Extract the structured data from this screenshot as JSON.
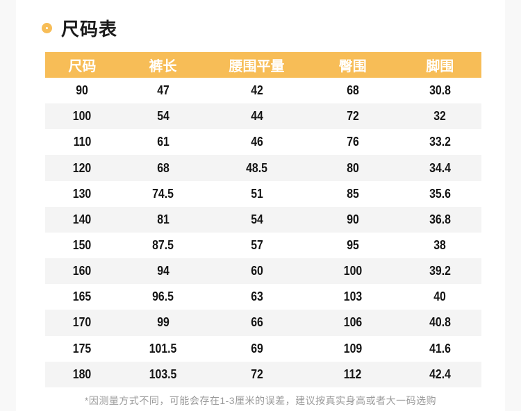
{
  "section": {
    "title": "尺码表",
    "footnote": "*因测量方式不同，可能会存在1-3厘米的误差，建议按真实身高或者大一码选购"
  },
  "table": {
    "headers": [
      "尺码",
      "裤长",
      "腰围平量",
      "臀围",
      "脚围"
    ],
    "rows": [
      [
        "90",
        "47",
        "42",
        "68",
        "30.8"
      ],
      [
        "100",
        "54",
        "44",
        "72",
        "32"
      ],
      [
        "110",
        "61",
        "46",
        "76",
        "33.2"
      ],
      [
        "120",
        "68",
        "48.5",
        "80",
        "34.4"
      ],
      [
        "130",
        "74.5",
        "51",
        "85",
        "35.6"
      ],
      [
        "140",
        "81",
        "54",
        "90",
        "36.8"
      ],
      [
        "150",
        "87.5",
        "57",
        "95",
        "38"
      ],
      [
        "160",
        "94",
        "60",
        "100",
        "39.2"
      ],
      [
        "165",
        "96.5",
        "63",
        "103",
        "40"
      ],
      [
        "170",
        "99",
        "66",
        "106",
        "40.8"
      ],
      [
        "175",
        "101.5",
        "69",
        "109",
        "41.6"
      ],
      [
        "180",
        "103.5",
        "72",
        "112",
        "42.4"
      ]
    ]
  },
  "colors": {
    "accent": "#F7BD57",
    "page_bg": "#F8F8F8",
    "card_bg": "#FFFFFF",
    "row_bg": "#FFFFFF",
    "row_alt_bg": "#F4F4F4",
    "header_text": "#FFFFFF",
    "cell_text": "#141414",
    "title_text": "#1A1A1A",
    "footnote_text": "#9B9B9B"
  }
}
